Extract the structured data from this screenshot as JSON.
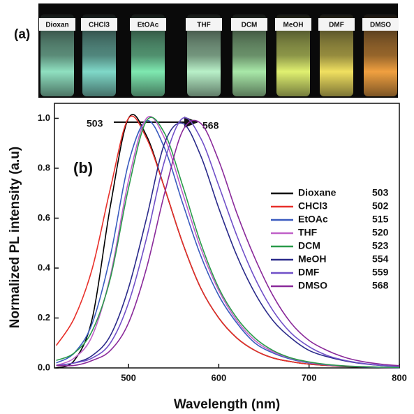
{
  "chart_data": {
    "type": "line",
    "panel_labels": [
      "(a)",
      "(b)"
    ],
    "image_labels": [
      "Dioxan",
      "CHCl3",
      "EtOAc",
      "THF",
      "DCM",
      "MeOH",
      "DMF",
      "DMSO"
    ],
    "arrow_labels": [
      "503",
      "568"
    ],
    "x_label": "Wavelength (nm)",
    "y_label": "Normalized PL intensity (a.u)",
    "xlim": [
      418,
      800
    ],
    "ylim": [
      0,
      1.06
    ],
    "xticks": [
      500,
      600,
      700,
      800
    ],
    "yticks": [
      {
        "value": 0,
        "label": "0.0"
      },
      0.2,
      0.4,
      0.6,
      0.8,
      {
        "value": 1,
        "label": "1.0"
      }
    ],
    "grid": false,
    "x": [
      420,
      440,
      460,
      480,
      500,
      520,
      540,
      560,
      580,
      600,
      620,
      640,
      660,
      680,
      700,
      720,
      740,
      760,
      780,
      800
    ],
    "series": [
      {
        "name": "Dioxane",
        "peak": 503,
        "color": "#000000",
        "values": [
          0.0,
          0.03,
          0.2,
          0.65,
          1.0,
          0.93,
          0.72,
          0.5,
          0.32,
          0.2,
          0.12,
          0.07,
          0.04,
          0.025,
          0.015,
          0.01,
          0.005,
          0.003,
          0.002,
          0.001
        ]
      },
      {
        "name": "CHCl3",
        "peak": 502,
        "color": "#e8302a",
        "values": [
          0.09,
          0.2,
          0.4,
          0.72,
          1.0,
          0.92,
          0.72,
          0.5,
          0.32,
          0.2,
          0.12,
          0.07,
          0.04,
          0.025,
          0.015,
          0.01,
          0.006,
          0.004,
          0.002,
          0.001
        ]
      },
      {
        "name": "EtOAc",
        "peak": 515,
        "color": "#3a5bbf",
        "values": [
          0.02,
          0.06,
          0.18,
          0.45,
          0.82,
          0.99,
          0.88,
          0.66,
          0.45,
          0.29,
          0.18,
          0.1,
          0.06,
          0.035,
          0.02,
          0.012,
          0.007,
          0.004,
          0.002,
          0.001
        ]
      },
      {
        "name": "THF",
        "peak": 520,
        "color": "#c060c8",
        "values": [
          0.01,
          0.04,
          0.13,
          0.37,
          0.75,
          1.0,
          0.92,
          0.7,
          0.48,
          0.31,
          0.19,
          0.11,
          0.065,
          0.038,
          0.022,
          0.013,
          0.008,
          0.005,
          0.003,
          0.002
        ]
      },
      {
        "name": "DCM",
        "peak": 523,
        "color": "#2a9a4a",
        "values": [
          0.03,
          0.06,
          0.15,
          0.36,
          0.72,
          0.99,
          0.94,
          0.73,
          0.5,
          0.32,
          0.2,
          0.12,
          0.07,
          0.04,
          0.024,
          0.014,
          0.008,
          0.005,
          0.003,
          0.002
        ]
      },
      {
        "name": "MeOH",
        "peak": 554,
        "color": "#2a2a8a",
        "values": [
          0.01,
          0.02,
          0.05,
          0.13,
          0.32,
          0.6,
          0.9,
          0.98,
          0.85,
          0.64,
          0.45,
          0.3,
          0.19,
          0.12,
          0.07,
          0.045,
          0.028,
          0.017,
          0.01,
          0.006
        ]
      },
      {
        "name": "DMF",
        "peak": 559,
        "color": "#7050c8",
        "values": [
          0.01,
          0.02,
          0.04,
          0.1,
          0.26,
          0.52,
          0.83,
          1.0,
          0.92,
          0.73,
          0.53,
          0.36,
          0.23,
          0.14,
          0.085,
          0.05,
          0.03,
          0.018,
          0.01,
          0.006
        ]
      },
      {
        "name": "DMSO",
        "peak": 568,
        "color": "#8a2a9a",
        "values": [
          0.01,
          0.01,
          0.03,
          0.07,
          0.18,
          0.4,
          0.7,
          0.95,
          0.98,
          0.83,
          0.62,
          0.44,
          0.29,
          0.18,
          0.11,
          0.07,
          0.042,
          0.025,
          0.015,
          0.009
        ]
      }
    ]
  }
}
